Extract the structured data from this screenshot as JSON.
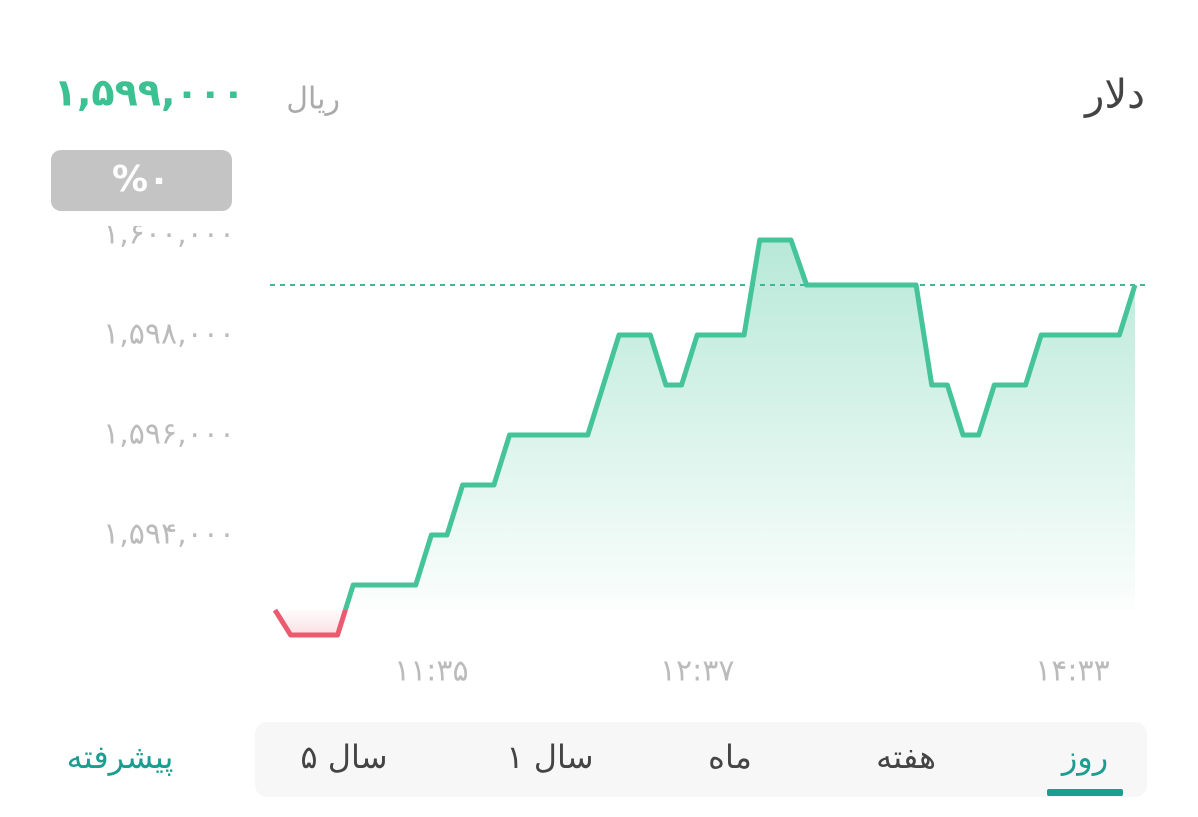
{
  "header": {
    "title": "دلار",
    "price": "۱,۵۹۹,۰۰۰",
    "unit": "ریال",
    "change": "%۰"
  },
  "chart_data": {
    "type": "line",
    "categories": [
      null,
      null,
      null,
      null,
      null,
      null,
      null,
      null,
      null,
      null,
      "۱۱:۳۵",
      null,
      null,
      null,
      null,
      null,
      null,
      null,
      null,
      null,
      null,
      null,
      null,
      null,
      null,
      null,
      null,
      "۱۲:۳۷",
      null,
      null,
      null,
      null,
      null,
      null,
      null,
      null,
      null,
      null,
      null,
      null,
      null,
      null,
      null,
      null,
      null,
      null,
      null,
      null,
      null,
      null,
      null,
      "۱۴:۳۳",
      null,
      null,
      null,
      null
    ],
    "series": [
      {
        "color": "#45c49a",
        "down_color": "#ea5b70",
        "values": [
          1592500,
          1592000,
          1592000,
          1592000,
          1592000,
          1593000,
          1593000,
          1593000,
          1593000,
          1593000,
          1594000,
          1594000,
          1595000,
          1595000,
          1595000,
          1596000,
          1596000,
          1596000,
          1596000,
          1596000,
          1596000,
          1597000,
          1598000,
          1598000,
          1598000,
          1597000,
          1597000,
          1598000,
          1598000,
          1598000,
          1598000,
          1599900,
          1599900,
          1599900,
          1599000,
          1599000,
          1599000,
          1599000,
          1599000,
          1599000,
          1599000,
          1599000,
          1597000,
          1597000,
          1596000,
          1596000,
          1597000,
          1597000,
          1597000,
          1598000,
          1598000,
          1598000,
          1598000,
          1598000,
          1598000,
          1599000
        ]
      }
    ],
    "reference_line": 1599000,
    "ylim": [
      1591700,
      1600200
    ],
    "yticks": [
      {
        "value": 1594000,
        "label": "۱,۵۹۴,۰۰۰"
      },
      {
        "value": 1596000,
        "label": "۱,۵۹۶,۰۰۰"
      },
      {
        "value": 1598000,
        "label": "۱,۵۹۸,۰۰۰"
      },
      {
        "value": 1600000,
        "label": "۱,۶۰۰,۰۰۰"
      }
    ]
  },
  "tabs": {
    "items": [
      "روز",
      "هفته",
      "ماه",
      "۱ سال",
      "۵ سال"
    ],
    "selected": 0,
    "advanced": "پیشرفته"
  }
}
